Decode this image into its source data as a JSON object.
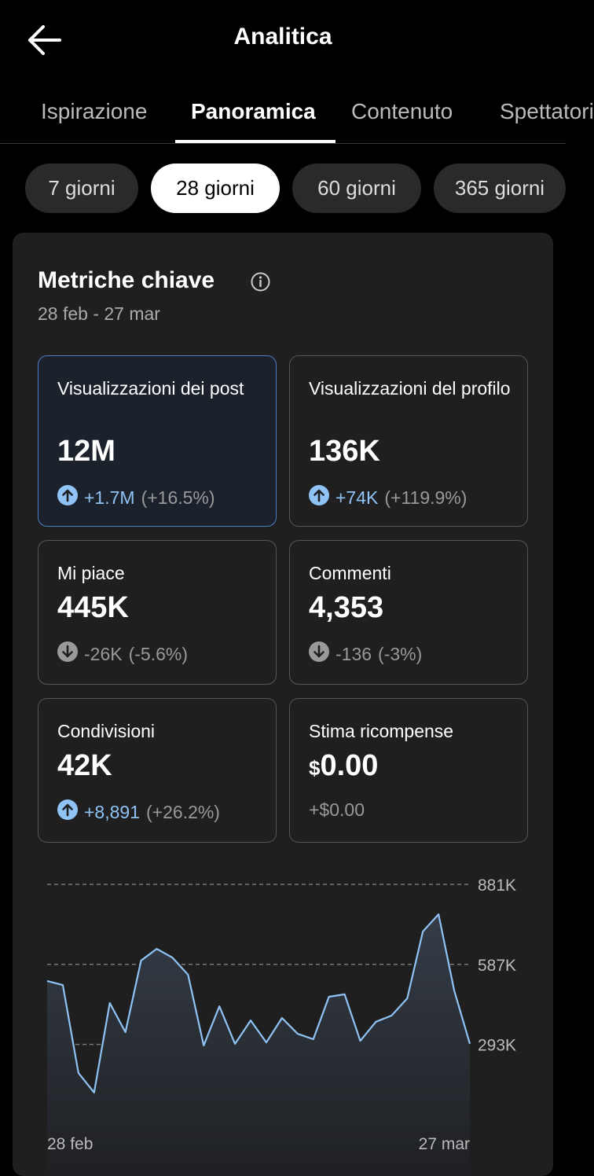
{
  "header": {
    "title": "Analitica"
  },
  "tabs": {
    "items": [
      "Ispirazione",
      "Panoramica",
      "Contenuto",
      "Spettatori"
    ],
    "selected": 1
  },
  "periods": {
    "items": [
      "7 giorni",
      "28 giorni",
      "60 giorni",
      "365 giorni"
    ],
    "selected": 1
  },
  "metrics": {
    "title": "Metriche chiave",
    "date_range": "28 feb - 27 mar",
    "cards": [
      {
        "label": "Visualizzazioni dei post",
        "value": "12M",
        "delta": "+1.7M",
        "percent": "(+16.5%)",
        "trend": "up",
        "selected": true
      },
      {
        "label": "Visualizzazioni del profilo",
        "value": "136K",
        "delta": "+74K",
        "percent": "(+119.9%)",
        "trend": "up"
      },
      {
        "label": "Mi piace",
        "value": "445K",
        "delta": "-26K",
        "percent": "(-5.6%)",
        "trend": "down"
      },
      {
        "label": "Commenti",
        "value": "4,353",
        "delta": "-136",
        "percent": "(-3%)",
        "trend": "down"
      },
      {
        "label": "Condivisioni",
        "value": "42K",
        "delta": "+8,891",
        "percent": "(+26.2%)",
        "trend": "up"
      },
      {
        "label": "Stima ricompense",
        "currency": "$",
        "value": "0.00",
        "delta": "+$0.00"
      }
    ]
  },
  "chart_data": {
    "type": "line",
    "categories": [
      "28 feb",
      null,
      null,
      null,
      null,
      null,
      null,
      null,
      null,
      null,
      null,
      null,
      null,
      null,
      null,
      null,
      null,
      null,
      null,
      null,
      null,
      null,
      null,
      null,
      null,
      null,
      null,
      "27 mar"
    ],
    "values": [
      526000,
      511000,
      188000,
      116000,
      445000,
      338000,
      601000,
      644000,
      612000,
      549000,
      289000,
      433000,
      295000,
      381000,
      300000,
      390000,
      332000,
      312000,
      468000,
      477000,
      306000,
      376000,
      399000,
      462000,
      708000,
      771000,
      491000,
      295000
    ],
    "color": "#8fc3f5",
    "ylim": [
      0,
      881000
    ],
    "yticks": [
      {
        "value": 293000,
        "label": "293K"
      },
      {
        "value": 587000,
        "label": "587K"
      },
      {
        "value": 881000,
        "label": "881K"
      }
    ],
    "grid": true
  }
}
